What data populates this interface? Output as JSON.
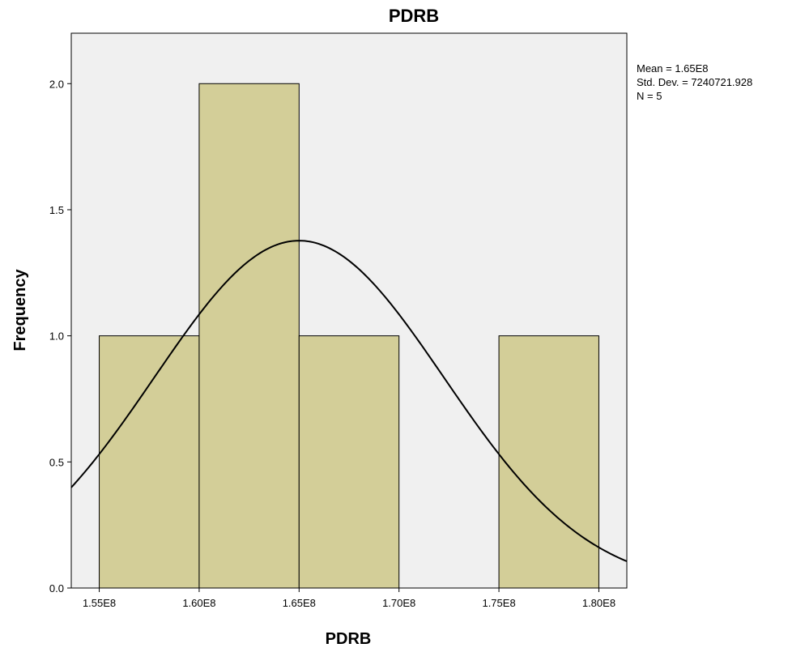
{
  "chart_data": {
    "type": "bar",
    "subtype": "histogram",
    "title": "PDRB",
    "xlabel": "PDRB",
    "ylabel": "Frequency",
    "bins": [
      {
        "start": 155000000,
        "end": 160000000,
        "count": 1
      },
      {
        "start": 160000000,
        "end": 165000000,
        "count": 2
      },
      {
        "start": 165000000,
        "end": 170000000,
        "count": 1
      },
      {
        "start": 170000000,
        "end": 175000000,
        "count": 0
      },
      {
        "start": 175000000,
        "end": 180000000,
        "count": 1
      }
    ],
    "xlim": [
      153600000,
      181400000
    ],
    "ylim": [
      0,
      2.2
    ],
    "x_ticks": [
      {
        "value": 155000000,
        "label": "1.55E8"
      },
      {
        "value": 160000000,
        "label": "1.60E8"
      },
      {
        "value": 165000000,
        "label": "1.65E8"
      },
      {
        "value": 170000000,
        "label": "1.70E8"
      },
      {
        "value": 175000000,
        "label": "1.75E8"
      },
      {
        "value": 180000000,
        "label": "1.80E8"
      }
    ],
    "y_ticks": [
      {
        "value": 0,
        "label": "0.0"
      },
      {
        "value": 0.5,
        "label": "0.5"
      },
      {
        "value": 1.0,
        "label": "1.0"
      },
      {
        "value": 1.5,
        "label": "1.5"
      },
      {
        "value": 2.0,
        "label": "2.0"
      }
    ],
    "normal_curve": {
      "mean": 165000000,
      "std_dev": 7240721.928,
      "n": 5,
      "bin_width": 5000000
    },
    "stats": [
      "Mean = 1.65E8",
      "Std. Dev. = 7240721.928",
      "N = 5"
    ],
    "grid": false,
    "colors": {
      "bar_fill": "#d3ce98",
      "plot_background": "#f0f0f0",
      "outline": "#000000"
    }
  }
}
